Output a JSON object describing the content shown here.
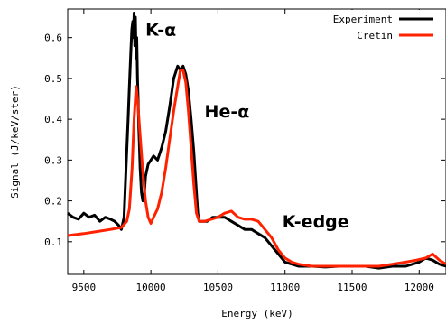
{
  "chart_data": {
    "type": "line",
    "title": "",
    "xlabel": "Energy (keV)",
    "ylabel": "Signal (J/keV/ster)",
    "xlim": [
      9380,
      12200
    ],
    "ylim": [
      0.02,
      0.67
    ],
    "xticks": [
      9500,
      10000,
      10500,
      11000,
      11500,
      12000
    ],
    "yticks": [
      0.1,
      0.2,
      0.3,
      0.4,
      0.5,
      0.6
    ],
    "ytick_labels": [
      "0.1",
      "0.2",
      "0.3",
      "0.4",
      "0.5",
      "0.6"
    ],
    "grid": false,
    "legend_position": "top-right",
    "series": [
      {
        "name": "Experiment",
        "color": "#000000",
        "x": [
          9380,
          9420,
          9460,
          9500,
          9540,
          9580,
          9620,
          9660,
          9700,
          9730,
          9760,
          9780,
          9800,
          9815,
          9830,
          9840,
          9850,
          9858,
          9865,
          9870,
          9875,
          9880,
          9885,
          9890,
          9895,
          9900,
          9905,
          9910,
          9915,
          9920,
          9930,
          9940,
          9950,
          9960,
          9980,
          10000,
          10020,
          10050,
          10080,
          10110,
          10140,
          10170,
          10200,
          10220,
          10240,
          10260,
          10280,
          10300,
          10320,
          10340,
          10350,
          10360,
          10380,
          10420,
          10460,
          10500,
          10550,
          10600,
          10650,
          10700,
          10750,
          10800,
          10850,
          10900,
          10950,
          11000,
          11050,
          11100,
          11200,
          11300,
          11400,
          11500,
          11600,
          11700,
          11800,
          11900,
          12000,
          12050,
          12100,
          12150,
          12200
        ],
        "y": [
          0.17,
          0.16,
          0.155,
          0.17,
          0.16,
          0.165,
          0.15,
          0.16,
          0.155,
          0.15,
          0.14,
          0.13,
          0.16,
          0.28,
          0.4,
          0.48,
          0.56,
          0.62,
          0.64,
          0.6,
          0.66,
          0.58,
          0.65,
          0.55,
          0.6,
          0.5,
          0.45,
          0.38,
          0.33,
          0.28,
          0.22,
          0.2,
          0.21,
          0.26,
          0.29,
          0.3,
          0.31,
          0.3,
          0.33,
          0.37,
          0.43,
          0.5,
          0.53,
          0.52,
          0.53,
          0.51,
          0.47,
          0.4,
          0.32,
          0.22,
          0.17,
          0.15,
          0.15,
          0.15,
          0.16,
          0.16,
          0.16,
          0.15,
          0.14,
          0.13,
          0.13,
          0.12,
          0.11,
          0.09,
          0.07,
          0.05,
          0.045,
          0.04,
          0.04,
          0.038,
          0.04,
          0.04,
          0.04,
          0.035,
          0.04,
          0.04,
          0.05,
          0.06,
          0.055,
          0.045,
          0.04
        ]
      },
      {
        "name": "Cretin",
        "color": "#ff2200",
        "x": [
          9380,
          9500,
          9600,
          9700,
          9780,
          9820,
          9840,
          9860,
          9875,
          9890,
          9900,
          9920,
          9940,
          9960,
          9980,
          10000,
          10020,
          10050,
          10080,
          10110,
          10140,
          10170,
          10200,
          10220,
          10240,
          10260,
          10280,
          10300,
          10320,
          10340,
          10360,
          10400,
          10450,
          10500,
          10550,
          10600,
          10650,
          10700,
          10750,
          10800,
          10850,
          10900,
          10950,
          11000,
          11050,
          11100,
          11200,
          11300,
          11400,
          11500,
          11600,
          11700,
          11800,
          11900,
          11980,
          12050,
          12100,
          12150,
          12200
        ],
        "y": [
          0.115,
          0.12,
          0.125,
          0.13,
          0.135,
          0.15,
          0.18,
          0.28,
          0.4,
          0.48,
          0.45,
          0.36,
          0.27,
          0.2,
          0.16,
          0.145,
          0.16,
          0.18,
          0.22,
          0.28,
          0.35,
          0.42,
          0.48,
          0.52,
          0.52,
          0.49,
          0.42,
          0.33,
          0.24,
          0.17,
          0.15,
          0.15,
          0.155,
          0.16,
          0.17,
          0.175,
          0.16,
          0.155,
          0.155,
          0.15,
          0.13,
          0.11,
          0.08,
          0.06,
          0.05,
          0.045,
          0.04,
          0.04,
          0.04,
          0.04,
          0.04,
          0.04,
          0.045,
          0.05,
          0.055,
          0.06,
          0.07,
          0.055,
          0.045
        ]
      }
    ],
    "annotations": [
      {
        "text": "K-α",
        "x": 9960,
        "y": 0.605
      },
      {
        "text": "He-α",
        "x": 10400,
        "y": 0.405
      },
      {
        "text": "K-edge",
        "x": 10980,
        "y": 0.135
      }
    ]
  }
}
